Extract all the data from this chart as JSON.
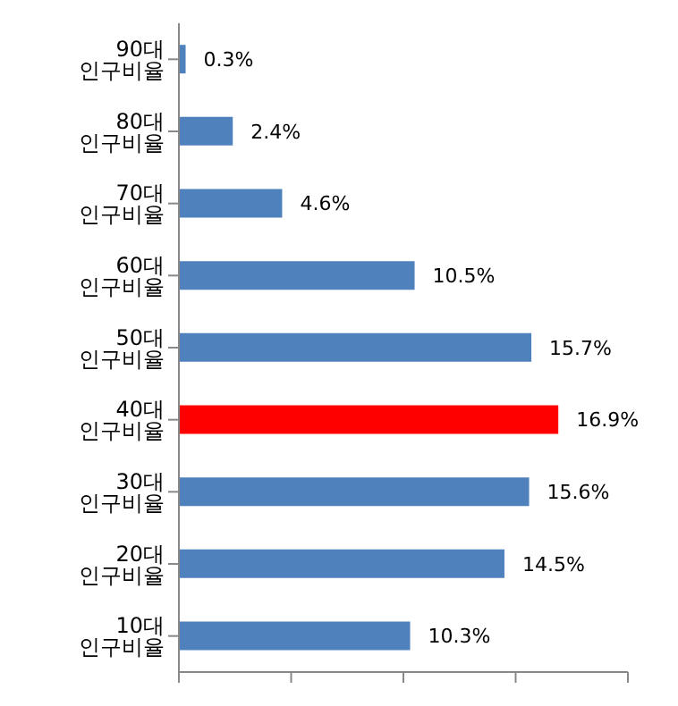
{
  "chart_data": {
    "type": "bar",
    "orientation": "horizontal",
    "categories": [
      "90대 인구비율",
      "80대 인구비율",
      "70대 인구비율",
      "60대 인구비율",
      "50대 인구비율",
      "40대 인구비율",
      "30대 인구비율",
      "20대 인구비율",
      "10대 인구비율"
    ],
    "values": [
      0.3,
      2.4,
      4.6,
      10.5,
      15.7,
      16.9,
      15.6,
      14.5,
      10.3
    ],
    "colors": [
      "#4f81bd",
      "#4f81bd",
      "#4f81bd",
      "#4f81bd",
      "#4f81bd",
      "#ff0000",
      "#4f81bd",
      "#4f81bd",
      "#4f81bd"
    ],
    "value_labels": [
      "0.3%",
      "2.4%",
      "4.6%",
      "10.5%",
      "15.7%",
      "16.9%",
      "15.6%",
      "14.5%",
      "10.3%"
    ],
    "xlim": [
      0,
      20
    ],
    "xticks": [
      {
        "value": 0,
        "label": null
      },
      {
        "value": 5,
        "label": null
      },
      {
        "value": 10,
        "label": null
      },
      {
        "value": 15,
        "label": null
      },
      {
        "value": 20,
        "label": null
      }
    ],
    "tick_labels": "y",
    "grid": false,
    "legend": false
  }
}
